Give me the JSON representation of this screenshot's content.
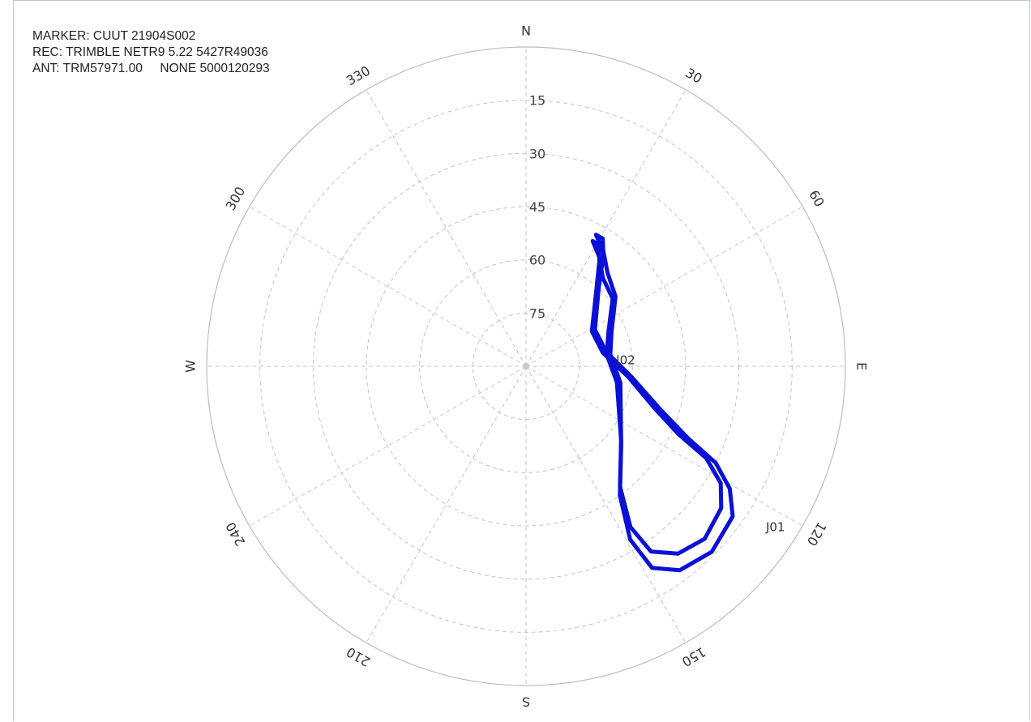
{
  "header": {
    "marker": "MARKER: CUUT 21904S002",
    "receiver": "REC: TRIMBLE NETR9 5.22 5427R49036",
    "antenna": "ANT: TRM57971.00     NONE 5000120293"
  },
  "chart_data": {
    "type": "polar-skyplot",
    "azimuth_labels": [
      {
        "az": 0,
        "text": "N"
      },
      {
        "az": 30,
        "text": "30"
      },
      {
        "az": 60,
        "text": "60"
      },
      {
        "az": 90,
        "text": "E"
      },
      {
        "az": 120,
        "text": "120"
      },
      {
        "az": 150,
        "text": "150"
      },
      {
        "az": 180,
        "text": "S"
      },
      {
        "az": 210,
        "text": "210"
      },
      {
        "az": 240,
        "text": "240"
      },
      {
        "az": 270,
        "text": "W"
      },
      {
        "az": 300,
        "text": "300"
      },
      {
        "az": 330,
        "text": "330"
      }
    ],
    "elevation_rings": [
      15,
      30,
      45,
      60,
      75
    ],
    "elevation_range": [
      0,
      90
    ],
    "grid": true,
    "track_color": "#0a10d6",
    "series": [
      {
        "name": "J01",
        "label_point": {
          "az": 124,
          "el": 9
        },
        "points": [
          {
            "az": 28,
            "el": 48
          },
          {
            "az": 31,
            "el": 48
          },
          {
            "az": 35,
            "el": 52
          },
          {
            "az": 43,
            "el": 60
          },
          {
            "az": 62,
            "el": 68
          },
          {
            "az": 80,
            "el": 67
          },
          {
            "az": 96,
            "el": 60
          },
          {
            "az": 108,
            "el": 50
          },
          {
            "az": 114,
            "el": 40
          },
          {
            "az": 117,
            "el": 30
          },
          {
            "az": 121,
            "el": 23
          },
          {
            "az": 126,
            "el": 18
          },
          {
            "az": 135,
            "el": 16
          },
          {
            "az": 143,
            "el": 18
          },
          {
            "az": 148,
            "el": 23
          },
          {
            "az": 149,
            "el": 33
          },
          {
            "az": 144,
            "el": 45
          },
          {
            "az": 130,
            "el": 55
          },
          {
            "az": 100,
            "el": 63
          },
          {
            "az": 82,
            "el": 66
          },
          {
            "az": 68,
            "el": 64
          },
          {
            "az": 52,
            "el": 58
          },
          {
            "az": 41,
            "el": 55
          },
          {
            "az": 34,
            "el": 51
          },
          {
            "az": 28,
            "el": 48
          }
        ]
      },
      {
        "name": "J02",
        "label_point": {
          "az": 86,
          "el": 65
        },
        "points": [
          {
            "az": 28,
            "el": 50
          },
          {
            "az": 31,
            "el": 50
          },
          {
            "az": 35,
            "el": 54
          },
          {
            "az": 43,
            "el": 61
          },
          {
            "az": 62,
            "el": 69
          },
          {
            "az": 80,
            "el": 68
          },
          {
            "az": 96,
            "el": 61
          },
          {
            "az": 108,
            "el": 52
          },
          {
            "az": 114,
            "el": 43
          },
          {
            "az": 117,
            "el": 33
          },
          {
            "az": 121,
            "el": 26
          },
          {
            "az": 126,
            "el": 22
          },
          {
            "az": 134,
            "el": 20
          },
          {
            "az": 141,
            "el": 22
          },
          {
            "az": 146,
            "el": 27
          },
          {
            "az": 147,
            "el": 36
          },
          {
            "az": 142,
            "el": 47
          },
          {
            "az": 128,
            "el": 56
          },
          {
            "az": 100,
            "el": 64
          },
          {
            "az": 82,
            "el": 67
          },
          {
            "az": 68,
            "el": 65
          },
          {
            "az": 52,
            "el": 59
          },
          {
            "az": 41,
            "el": 57
          },
          {
            "az": 34,
            "el": 53
          },
          {
            "az": 28,
            "el": 50
          }
        ]
      }
    ]
  }
}
